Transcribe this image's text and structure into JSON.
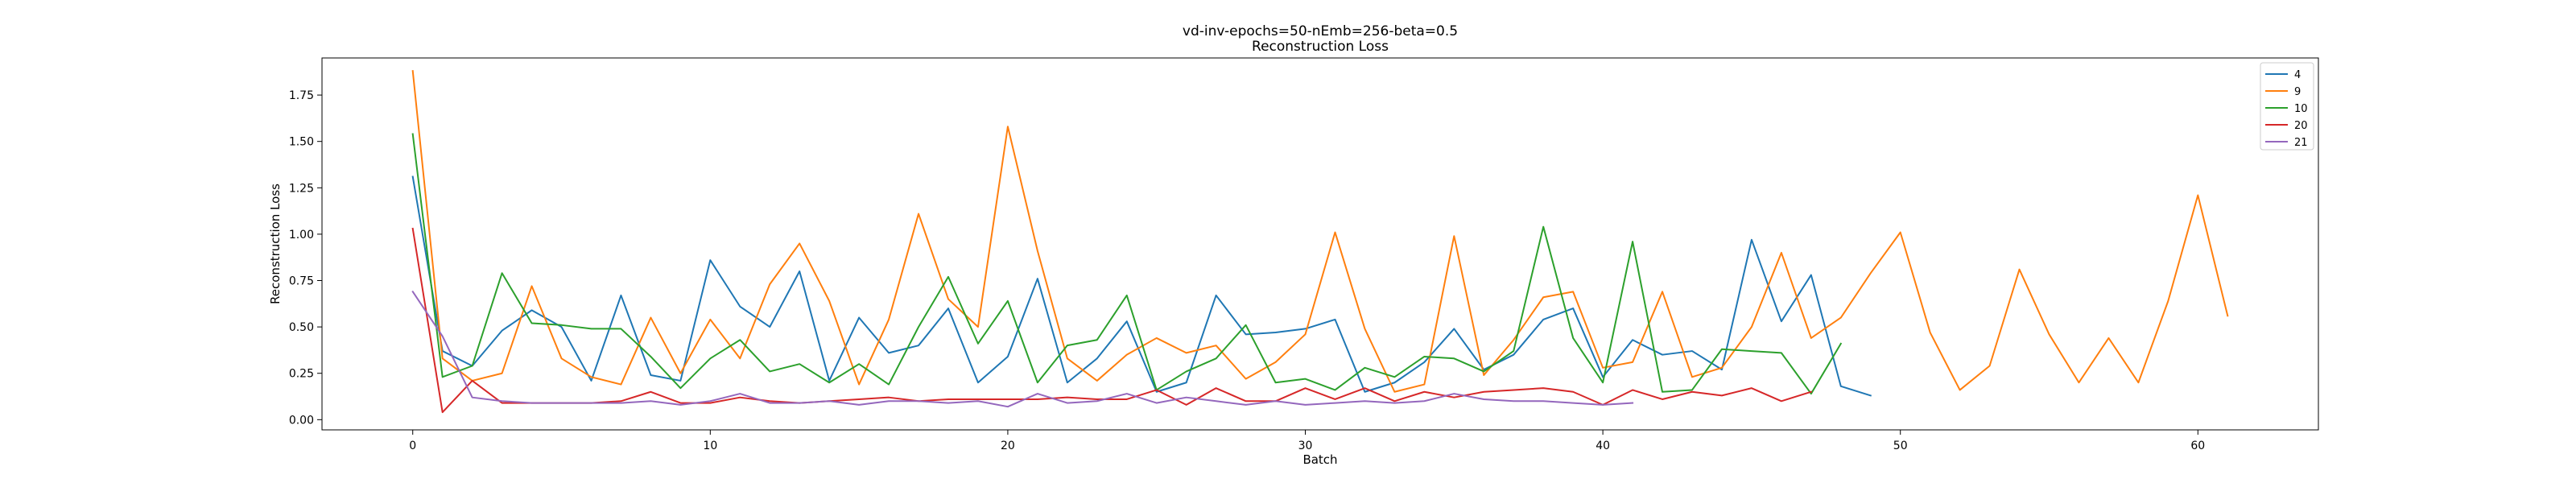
{
  "chart_data": {
    "type": "line",
    "title": "vd-inv-epochs=50-nEmb=256-beta=0.5",
    "subtitle": "Reconstruction Loss",
    "xlabel": "Batch",
    "ylabel": "Reconstruction Loss",
    "xlim": [
      -3.05,
      64.05
    ],
    "ylim": [
      -0.055,
      1.95
    ],
    "xticks": [
      "0",
      "10",
      "20",
      "30",
      "40",
      "50",
      "60"
    ],
    "yticks": [
      "0.00",
      "0.25",
      "0.50",
      "0.75",
      "1.00",
      "1.25",
      "1.50",
      "1.75"
    ],
    "grid": false,
    "legend_position": "top-right",
    "series": [
      {
        "name": "4",
        "color": "#1f77b4",
        "values": [
          1.31,
          0.37,
          0.29,
          0.48,
          0.59,
          0.5,
          0.21,
          0.67,
          0.24,
          0.21,
          0.86,
          0.61,
          0.5,
          0.8,
          0.21,
          0.55,
          0.36,
          0.4,
          0.6,
          0.2,
          0.34,
          0.76,
          0.2,
          0.33,
          0.53,
          0.15,
          0.2,
          0.67,
          0.46,
          0.47,
          0.49,
          0.54,
          0.15,
          0.2,
          0.31,
          0.49,
          0.27,
          0.35,
          0.54,
          0.6,
          0.23,
          0.43,
          0.35,
          0.37,
          0.27,
          0.97,
          0.53,
          0.78,
          0.18,
          0.13
        ]
      },
      {
        "name": "9",
        "color": "#ff7f0e",
        "values": [
          1.88,
          0.33,
          0.21,
          0.25,
          0.72,
          0.33,
          0.23,
          0.19,
          0.55,
          0.25,
          0.54,
          0.33,
          0.73,
          0.95,
          0.64,
          0.19,
          0.54,
          1.11,
          0.65,
          0.5,
          1.58,
          0.91,
          0.33,
          0.21,
          0.35,
          0.44,
          0.36,
          0.4,
          0.22,
          0.31,
          0.46,
          1.01,
          0.49,
          0.15,
          0.19,
          0.99,
          0.24,
          0.43,
          0.66,
          0.69,
          0.28,
          0.31,
          0.69,
          0.23,
          0.28,
          0.5,
          0.9,
          0.44,
          0.55,
          0.79,
          1.01,
          0.47,
          0.16,
          0.29,
          0.81,
          0.46,
          0.2,
          0.44,
          0.2,
          0.64,
          1.21,
          0.56
        ]
      },
      {
        "name": "10",
        "color": "#2ca02c",
        "values": [
          1.54,
          0.23,
          0.29,
          0.79,
          0.52,
          0.51,
          0.49,
          0.49,
          0.34,
          0.17,
          0.33,
          0.43,
          0.26,
          0.3,
          0.2,
          0.3,
          0.19,
          0.5,
          0.77,
          0.41,
          0.64,
          0.2,
          0.4,
          0.43,
          0.67,
          0.16,
          0.26,
          0.33,
          0.51,
          0.2,
          0.22,
          0.16,
          0.28,
          0.23,
          0.34,
          0.33,
          0.26,
          0.37,
          1.04,
          0.44,
          0.2,
          0.96,
          0.15,
          0.16,
          0.38,
          0.37,
          0.36,
          0.14,
          0.41
        ]
      },
      {
        "name": "20",
        "color": "#d62728",
        "values": [
          1.03,
          0.04,
          0.21,
          0.09,
          0.09,
          0.09,
          0.09,
          0.1,
          0.15,
          0.09,
          0.09,
          0.12,
          0.1,
          0.09,
          0.1,
          0.11,
          0.12,
          0.1,
          0.11,
          0.11,
          0.11,
          0.11,
          0.12,
          0.11,
          0.11,
          0.16,
          0.08,
          0.17,
          0.1,
          0.1,
          0.17,
          0.11,
          0.17,
          0.1,
          0.15,
          0.12,
          0.15,
          0.16,
          0.17,
          0.15,
          0.08,
          0.16,
          0.11,
          0.15,
          0.13,
          0.17,
          0.1,
          0.15
        ]
      },
      {
        "name": "21",
        "color": "#9467bd",
        "values": [
          0.69,
          0.45,
          0.12,
          0.1,
          0.09,
          0.09,
          0.09,
          0.09,
          0.1,
          0.08,
          0.1,
          0.14,
          0.09,
          0.09,
          0.1,
          0.08,
          0.1,
          0.1,
          0.09,
          0.1,
          0.07,
          0.14,
          0.09,
          0.1,
          0.14,
          0.09,
          0.12,
          0.1,
          0.08,
          0.1,
          0.08,
          0.09,
          0.1,
          0.09,
          0.1,
          0.14,
          0.11,
          0.1,
          0.1,
          0.09,
          0.08,
          0.09
        ]
      }
    ]
  }
}
